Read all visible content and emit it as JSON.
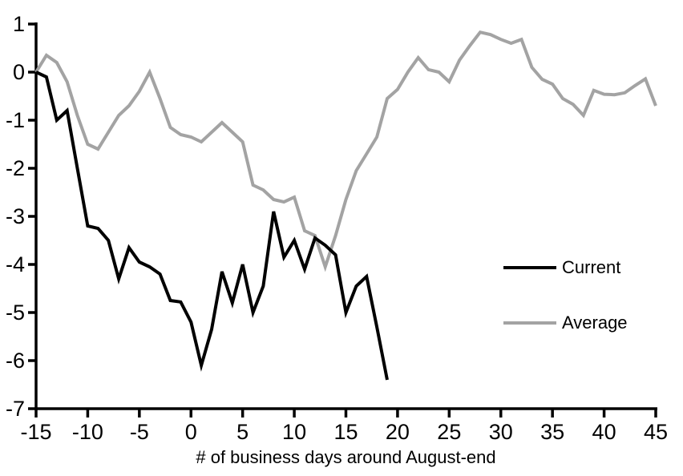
{
  "chart_data": {
    "type": "line",
    "title": "",
    "xlabel": "# of business days around August-end",
    "ylabel": "",
    "xlim": [
      -15,
      45
    ],
    "ylim": [
      -7,
      1
    ],
    "x_ticks": [
      -15,
      -10,
      -5,
      0,
      5,
      10,
      15,
      20,
      25,
      30,
      35,
      40,
      45
    ],
    "y_ticks": [
      1,
      0,
      -1,
      -2,
      -3,
      -4,
      -5,
      -6,
      -7
    ],
    "grid": false,
    "legend_position": "right-middle",
    "series": [
      {
        "name": "Current",
        "color": "#000000",
        "x_start": -15,
        "x_step": 1,
        "values": [
          0,
          -0.1,
          -1.0,
          -0.8,
          -2.0,
          -3.2,
          -3.25,
          -3.5,
          -4.3,
          -3.65,
          -3.95,
          -4.05,
          -4.2,
          -4.75,
          -4.78,
          -5.2,
          -6.1,
          -5.35,
          -4.15,
          -4.8,
          -4.0,
          -5.0,
          -4.45,
          -2.9,
          -3.85,
          -3.5,
          -4.1,
          -3.45,
          -3.6,
          -3.8,
          -5.0,
          -4.45,
          -4.25,
          -5.3,
          -6.4
        ]
      },
      {
        "name": "Average",
        "color": "#a3a3a3",
        "x_start": -15,
        "x_step": 1,
        "values": [
          0.0,
          0.35,
          0.2,
          -0.2,
          -0.9,
          -1.5,
          -1.6,
          -1.25,
          -0.9,
          -0.7,
          -0.4,
          0.0,
          -0.55,
          -1.15,
          -1.3,
          -1.35,
          -1.45,
          -1.25,
          -1.05,
          -1.25,
          -1.45,
          -2.35,
          -2.45,
          -2.65,
          -2.7,
          -2.6,
          -3.3,
          -3.4,
          -4.05,
          -3.4,
          -2.65,
          -2.05,
          -1.7,
          -1.35,
          -0.55,
          -0.36,
          0.0,
          0.3,
          0.05,
          0.0,
          -0.2,
          0.25,
          0.55,
          0.83,
          0.78,
          0.68,
          0.6,
          0.68,
          0.1,
          -0.15,
          -0.25,
          -0.55,
          -0.67,
          -0.9,
          -0.38,
          -0.46,
          -0.47,
          -0.43,
          -0.28,
          -0.14,
          -0.7
        ]
      }
    ]
  },
  "colors": {
    "background": "#ffffff",
    "axis": "#000000",
    "tick_text": "#000000"
  },
  "legend": {
    "items": [
      {
        "label": "Current"
      },
      {
        "label": "Average"
      }
    ]
  }
}
